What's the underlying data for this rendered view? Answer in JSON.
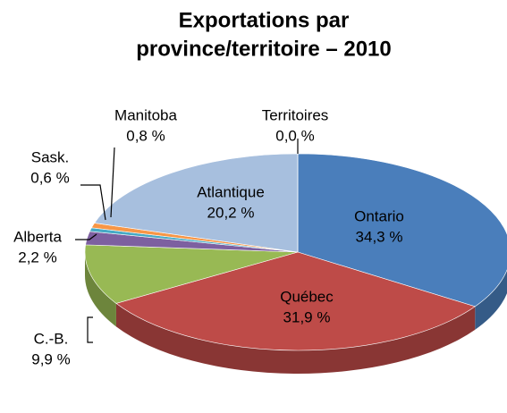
{
  "chart_data": {
    "type": "pie3d",
    "title": [
      "Exportations par",
      "province/territoire – 2010"
    ],
    "categories": [
      "Ontario",
      "Québec",
      "C.-B.",
      "Alberta",
      "Sask.",
      "Manitoba",
      "Atlantique",
      "Territoires"
    ],
    "values": [
      34.3,
      31.9,
      9.9,
      2.2,
      0.6,
      0.8,
      20.2,
      0.0
    ],
    "value_labels": [
      "34,3 %",
      "31,9 %",
      "9,9 %",
      "2,2 %",
      "0,6 %",
      "0,8 %",
      "20,2 %",
      "0,0 %"
    ],
    "colors": [
      "#4a7ebb",
      "#be4b48",
      "#98b954",
      "#7d60a0",
      "#46aac5",
      "#f79646",
      "#a7bfde",
      "#c0c0c0"
    ]
  }
}
